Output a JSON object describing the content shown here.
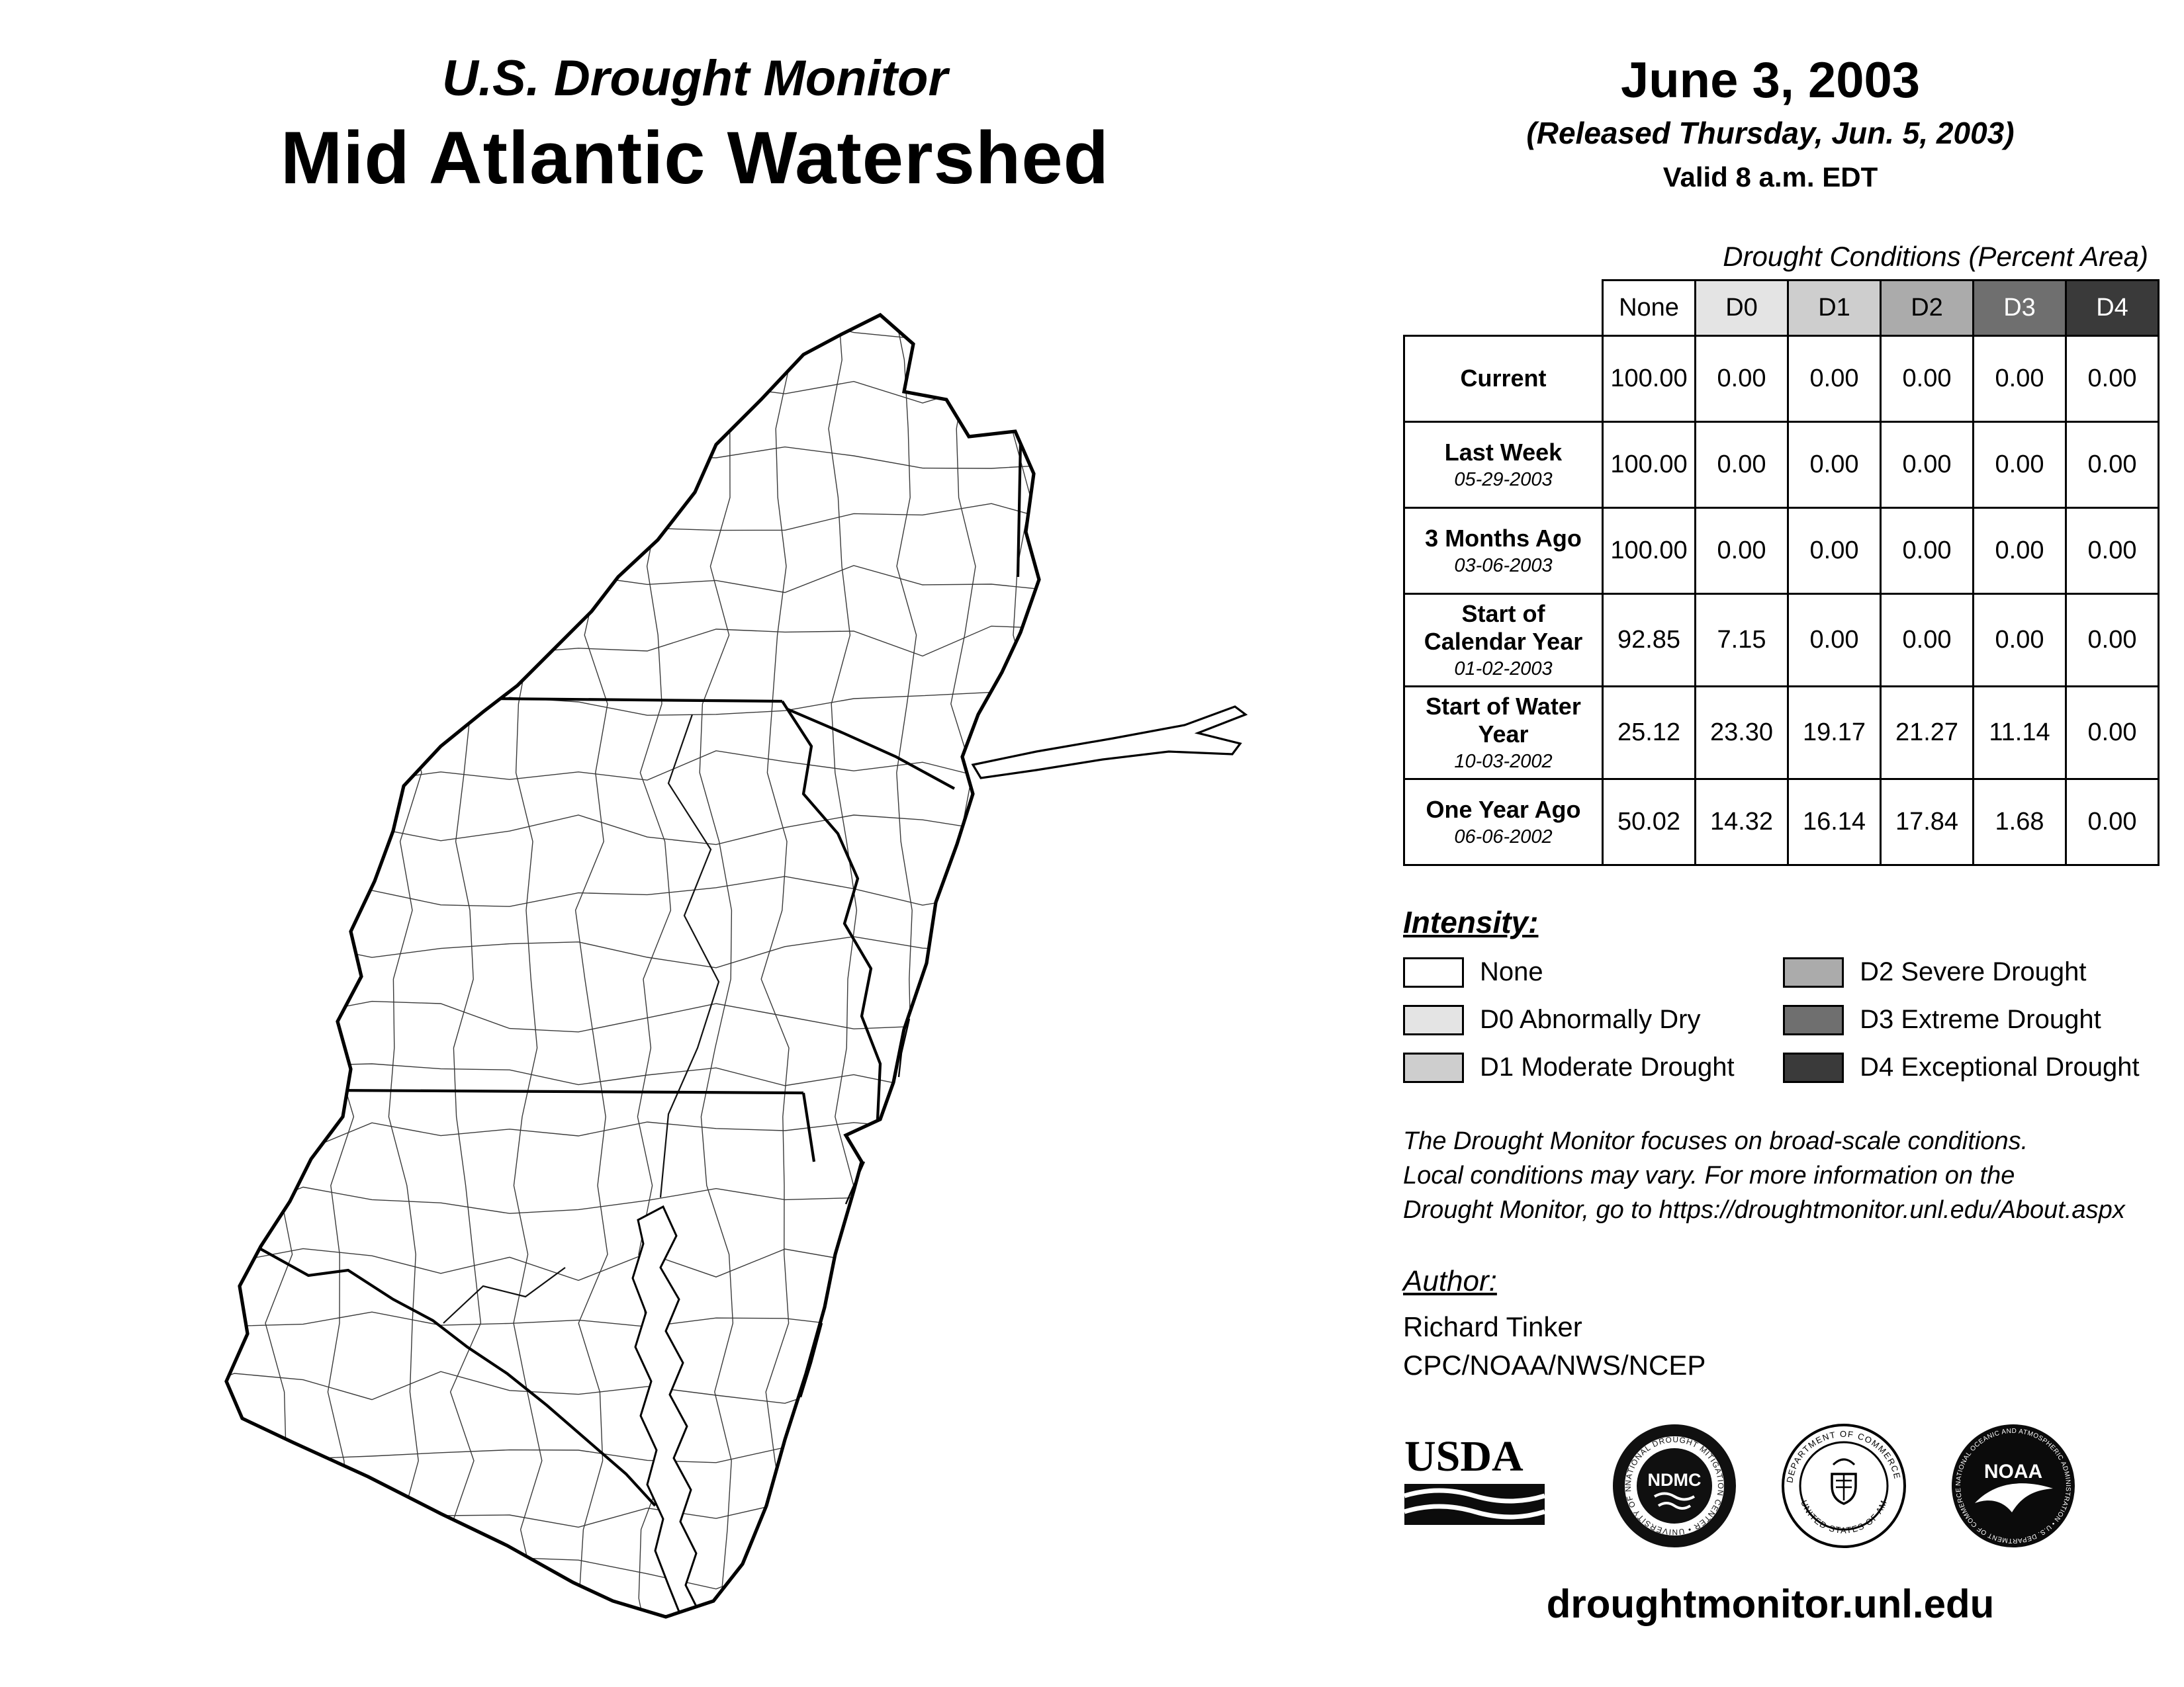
{
  "header": {
    "program": "U.S. Drought Monitor",
    "region": "Mid Atlantic Watershed",
    "date": "June 3, 2003",
    "released": "(Released Thursday, Jun. 5, 2003)",
    "valid": "Valid 8 a.m. EDT"
  },
  "table": {
    "title": "Drought Conditions (Percent Area)",
    "columns": [
      "None",
      "D0",
      "D1",
      "D2",
      "D3",
      "D4"
    ],
    "header_colors": [
      "#ffffff",
      "#e4e4e4",
      "#cecece",
      "#ababab",
      "#6f6f6f",
      "#3a3a3a"
    ],
    "rows": [
      {
        "label": "Current",
        "sub": "",
        "values": [
          "100.00",
          "0.00",
          "0.00",
          "0.00",
          "0.00",
          "0.00"
        ]
      },
      {
        "label": "Last Week",
        "sub": "05-29-2003",
        "values": [
          "100.00",
          "0.00",
          "0.00",
          "0.00",
          "0.00",
          "0.00"
        ]
      },
      {
        "label": "3 Months Ago",
        "sub": "03-06-2003",
        "values": [
          "100.00",
          "0.00",
          "0.00",
          "0.00",
          "0.00",
          "0.00"
        ]
      },
      {
        "label": "Start of Calendar Year",
        "sub": "01-02-2003",
        "values": [
          "92.85",
          "7.15",
          "0.00",
          "0.00",
          "0.00",
          "0.00"
        ]
      },
      {
        "label": "Start of Water Year",
        "sub": "10-03-2002",
        "values": [
          "25.12",
          "23.30",
          "19.17",
          "21.27",
          "11.14",
          "0.00"
        ]
      },
      {
        "label": "One Year Ago",
        "sub": "06-06-2002",
        "values": [
          "50.02",
          "14.32",
          "16.14",
          "17.84",
          "1.68",
          "0.00"
        ]
      }
    ]
  },
  "legend": {
    "title": "Intensity:",
    "items": [
      {
        "label": "None",
        "color": "#ffffff"
      },
      {
        "label": "D0 Abnormally Dry",
        "color": "#e4e4e4"
      },
      {
        "label": "D1 Moderate Drought",
        "color": "#cecece"
      },
      {
        "label": "D2 Severe Drought",
        "color": "#ababab"
      },
      {
        "label": "D3 Extreme Drought",
        "color": "#6f6f6f"
      },
      {
        "label": "D4 Exceptional Drought",
        "color": "#3a3a3a"
      }
    ]
  },
  "disclaimer": {
    "line1": "The Drought Monitor focuses on broad-scale conditions.",
    "line2": "Local conditions may vary. For more information on the",
    "line3": "Drought Monitor, go to https://droughtmonitor.unl.edu/About.aspx"
  },
  "author": {
    "title": "Author:",
    "name": "Richard Tinker",
    "org": "CPC/NOAA/NWS/NCEP"
  },
  "logos": {
    "usda": {
      "text": "USDA"
    },
    "ndmc": {
      "text": "NDMC",
      "ring_text": "NATIONAL DROUGHT MITIGATION CENTER • UNIVERSITY OF NEBRASKA"
    },
    "doc": {
      "ring_top": "DEPARTMENT OF COMMERCE",
      "ring_bottom": "UNITED STATES OF AMERICA"
    },
    "noaa": {
      "text": "NOAA",
      "ring_text": "NATIONAL OCEANIC AND ATMOSPHERIC ADMINISTRATION • U.S. DEPARTMENT OF COMMERCE"
    }
  },
  "footer": {
    "url": "droughtmonitor.unl.edu"
  }
}
